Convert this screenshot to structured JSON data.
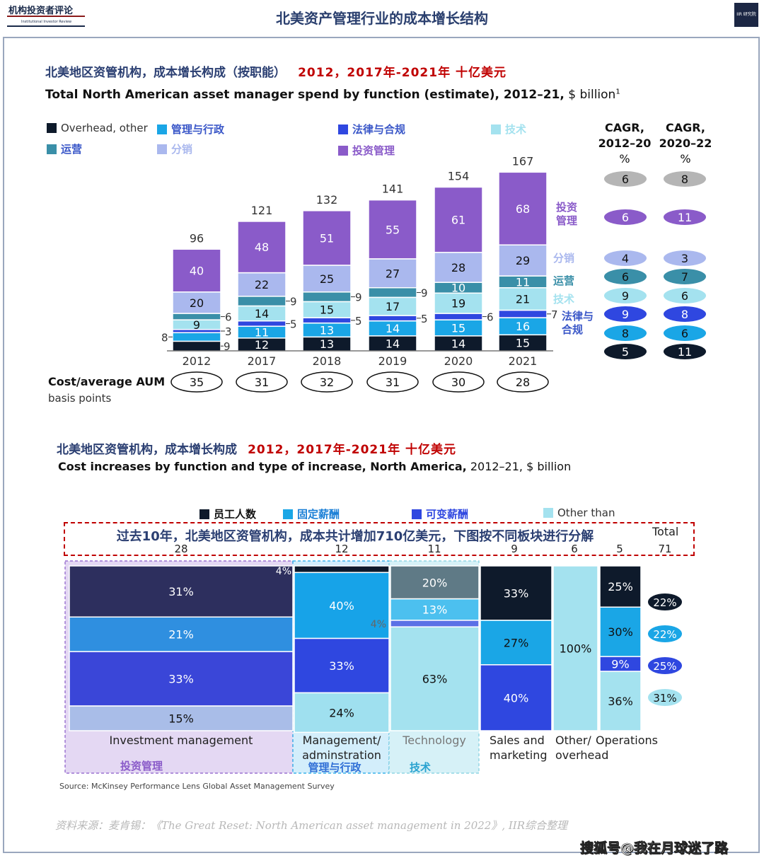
{
  "header": {
    "logo_cn": "机构投资者评论",
    "logo_en": "Institutional Investor Review",
    "title": "北美资产管理行业的成本增长结构",
    "corner_logo": "IIR 研究院"
  },
  "top": {
    "title_cn": "北美地区资管机构，成本增长构成（按职能）",
    "title_red": "2012，2017年-2021年 十亿美元",
    "title_en_bold": "Total North American asset manager spend by function (estimate), 2012–21,",
    "title_en_light": " $ billion",
    "title_sup": "1",
    "legend": [
      {
        "label": "Overhead, other",
        "color": "#0e1a2b"
      },
      {
        "label": "管理与行政",
        "color": "#1aa6e6"
      },
      {
        "label": "法律与合规",
        "color": "#2f47e0"
      },
      {
        "label": "技术",
        "color": "#a4e2ef"
      },
      {
        "label": "运营",
        "color": "#3a8fa8"
      },
      {
        "label": "分销",
        "color": "#aab8ee"
      },
      {
        "label": "投资管理",
        "color": "#8a5bc9"
      }
    ],
    "cagr_headers": [
      [
        "CAGR,",
        "2012–20",
        "%"
      ],
      [
        "CAGR,",
        "2020–22",
        "%"
      ]
    ],
    "cost_label": "Cost/average AUM",
    "cost_sublabel": "basis points"
  },
  "chart_data": [
    {
      "type": "bar",
      "stacked": true,
      "title": "Total North American asset manager spend by function (estimate), 2012–21, $ billion",
      "categories": [
        "2012",
        "2017",
        "2018",
        "2019",
        "2020",
        "2021"
      ],
      "series": [
        {
          "name": "Overhead, other",
          "values": [
            9,
            12,
            13,
            14,
            14,
            15
          ],
          "color": "#0e1a2b"
        },
        {
          "name": "管理与行政",
          "values": [
            8,
            11,
            13,
            14,
            15,
            16
          ],
          "color": "#1aa6e6"
        },
        {
          "name": "法律与合规",
          "values": [
            3,
            5,
            5,
            5,
            6,
            7
          ],
          "color": "#2f47e0"
        },
        {
          "name": "技术",
          "values": [
            9,
            14,
            15,
            17,
            19,
            21
          ],
          "color": "#a4e2ef"
        },
        {
          "name": "运营",
          "values": [
            6,
            9,
            9,
            9,
            10,
            11
          ],
          "color": "#3a8fa8"
        },
        {
          "name": "分销",
          "values": [
            20,
            22,
            25,
            27,
            28,
            29
          ],
          "color": "#aab8ee"
        },
        {
          "name": "投资管理",
          "values": [
            40,
            48,
            51,
            55,
            61,
            68
          ],
          "color": "#8a5bc9"
        }
      ],
      "totals": [
        96,
        121,
        132,
        141,
        154,
        167
      ],
      "side_labels": [
        "投资管理",
        "分销",
        "运营",
        "技术",
        "法律与合规"
      ],
      "cagr_2012_20": [
        6,
        6,
        4,
        6,
        9,
        9,
        8,
        5
      ],
      "cagr_2020_22": [
        8,
        11,
        3,
        7,
        6,
        8,
        6,
        11
      ],
      "cagr_rows": [
        "Total",
        "投资管理",
        "分销",
        "运营",
        "技术",
        "法律与合规",
        "管理与行政",
        "Overhead, other"
      ],
      "cost_per_aum_bp": [
        35,
        31,
        32,
        31,
        30,
        28
      ]
    },
    {
      "type": "bar",
      "stacked": true,
      "title": "Cost increases by function and type of increase, North America, 2012–21, $ billion",
      "categories": [
        "Investment management",
        "Management/ adminstration",
        "Technology",
        "Sales and marketing",
        "Other/ overhead",
        "Operations"
      ],
      "widths": [
        28,
        12,
        11,
        9,
        6,
        5
      ],
      "total": 71,
      "series": [
        {
          "name": "员工人数",
          "values": [
            31,
            4,
            20,
            33,
            100,
            25
          ],
          "labels": [
            "31%",
            "4%",
            "20%",
            "33%",
            "100%",
            "25%"
          ]
        },
        {
          "name": "固定薪酬",
          "values": [
            21,
            40,
            13,
            27,
            0,
            30
          ],
          "labels": [
            "21%",
            "40%",
            "13%",
            "27%",
            "",
            "30%"
          ]
        },
        {
          "name": "可变薪酬",
          "values": [
            33,
            33,
            4,
            40,
            0,
            9
          ],
          "labels": [
            "33%",
            "33%",
            "4%",
            "40%",
            "",
            "9%"
          ]
        },
        {
          "name": "Other than",
          "values": [
            15,
            24,
            63,
            0,
            0,
            36
          ],
          "labels": [
            "15%",
            "24%",
            "63%",
            "",
            "",
            "36%"
          ]
        }
      ],
      "totals_by_type": [
        "22%",
        "22%",
        "25%",
        "31%"
      ]
    }
  ],
  "bottom": {
    "title_cn": "北美地区资管机构，成本增长构成",
    "title_red": "2012，2017年-2021年 十亿美元",
    "title_en_bold": "Cost increases by function and type of increase, North America,",
    "title_en_light": " 2012–21, $ billion",
    "legend": [
      {
        "label": "员工人数",
        "color": "#0e1a2b"
      },
      {
        "label": "固定薪酬",
        "color": "#1aa6e6"
      },
      {
        "label": "可变薪酬",
        "color": "#2f47e0"
      },
      {
        "label": "Other than",
        "color": "#a4e2ef"
      }
    ],
    "dash_text": "过去10年，北美地区资管机构，成本共计增加710亿美元，下图按不同板块进行分解",
    "total_label": "Total",
    "total_value": "71",
    "col_totals": [
      "28",
      "12",
      "11",
      "9",
      "6",
      "5"
    ],
    "col_labels_en": [
      "Investment management",
      "Management/\nadminstration",
      "Technology",
      "Sales and\nmarketing",
      "Other/\noverhead",
      "Operations"
    ],
    "col_labels_cn": [
      "投资管理",
      "管理与行政",
      "技术"
    ],
    "right_badges": [
      "22%",
      "22%",
      "25%",
      "31%"
    ],
    "source": "Source: McKinsey Performance Lens Global Asset Management Survey"
  },
  "footer": {
    "source_cn": "资料来源：麦肯锡：《The Great Reset: North American asset management in 2022》, IIR综合整理",
    "watermark": "搜狐号@我在月球迷了路"
  }
}
